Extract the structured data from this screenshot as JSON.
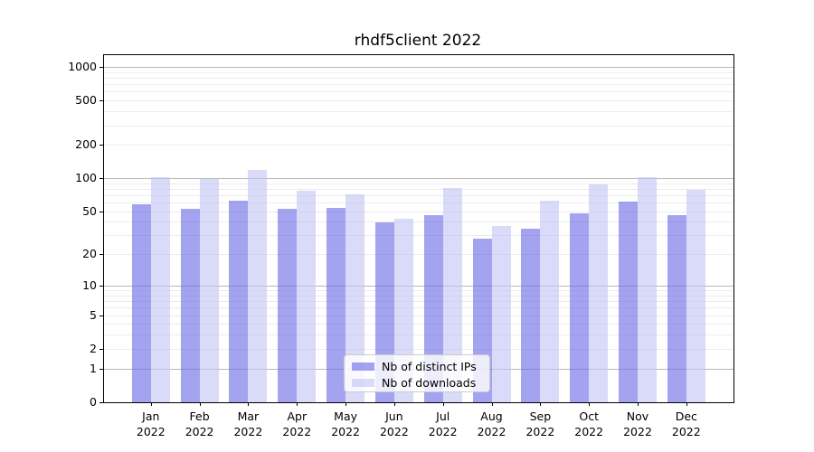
{
  "title": "rhdf5client 2022",
  "chart_data": {
    "type": "bar",
    "title": "rhdf5client 2022",
    "categories": [
      "Jan",
      "Feb",
      "Mar",
      "Apr",
      "May",
      "Jun",
      "Jul",
      "Aug",
      "Sep",
      "Oct",
      "Nov",
      "Dec"
    ],
    "year_label": "2022",
    "series": [
      {
        "name": "Nb of distinct IPs",
        "color": "rgba(102,102,230,0.6)",
        "values": [
          58,
          53,
          63,
          53,
          54,
          40,
          46,
          28,
          35,
          48,
          62,
          46
        ]
      },
      {
        "name": "Nb of downloads",
        "color": "rgba(193,193,245,0.6)",
        "values": [
          103,
          98,
          120,
          77,
          72,
          43,
          82,
          37,
          63,
          88,
          102,
          79
        ]
      }
    ],
    "yscale": "symlog",
    "yticks": [
      0,
      1,
      2,
      5,
      10,
      20,
      50,
      100,
      200,
      500,
      1000
    ],
    "ylim": [
      0,
      1250
    ],
    "grid": true,
    "legend_position": "lower center",
    "colors": {
      "major_grid": "#b8b8b8",
      "minor_grid": "#ececec",
      "axis": "#000000",
      "background": "#ffffff"
    }
  }
}
